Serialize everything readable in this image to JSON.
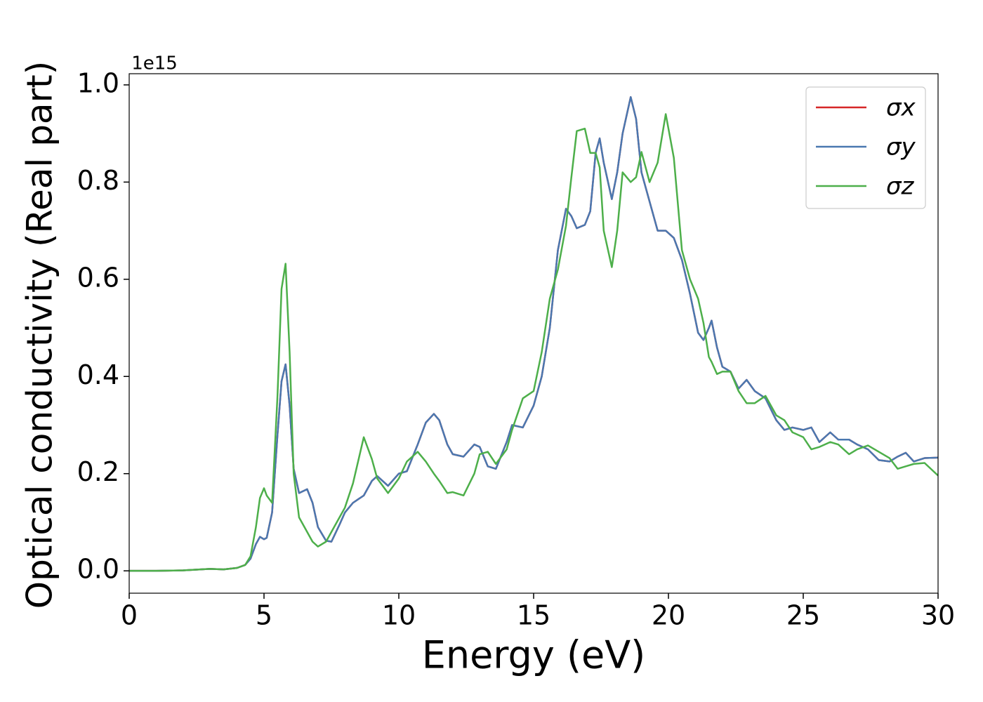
{
  "chart_data": {
    "type": "line",
    "xlabel": "Energy (eV)",
    "ylabel": "Optical conductivity (Real part)",
    "y_offset_label": "1e15",
    "x": [
      0,
      1,
      2,
      3,
      3.5,
      4,
      4.3,
      4.5,
      4.7,
      4.85,
      5.0,
      5.1,
      5.3,
      5.5,
      5.65,
      5.8,
      5.95,
      6.1,
      6.3,
      6.6,
      6.8,
      7.0,
      7.3,
      7.5,
      7.8,
      8.0,
      8.3,
      8.7,
      9.0,
      9.2,
      9.6,
      10.0,
      10.3,
      10.7,
      11.0,
      11.3,
      11.5,
      11.8,
      12.0,
      12.4,
      12.8,
      13.0,
      13.3,
      13.6,
      14.0,
      14.2,
      14.6,
      15.0,
      15.3,
      15.6,
      15.9,
      16.2,
      16.4,
      16.6,
      16.9,
      17.1,
      17.3,
      17.45,
      17.6,
      17.9,
      18.1,
      18.3,
      18.6,
      18.8,
      19.0,
      19.3,
      19.6,
      19.9,
      20.2,
      20.5,
      20.8,
      21.1,
      21.3,
      21.5,
      21.6,
      21.8,
      22.0,
      22.3,
      22.6,
      22.9,
      23.2,
      23.6,
      24.0,
      24.3,
      24.6,
      25.0,
      25.3,
      25.6,
      26.0,
      26.3,
      26.7,
      27.0,
      27.4,
      27.8,
      28.2,
      28.5,
      28.8,
      29.1,
      29.5,
      30
    ],
    "series": [
      {
        "name": "σx",
        "color": "#d62728",
        "values": [
          0,
          0,
          0.001,
          0.004,
          0.003,
          0.006,
          0.012,
          0.025,
          0.055,
          0.07,
          0.065,
          0.068,
          0.12,
          0.28,
          0.39,
          0.425,
          0.34,
          0.21,
          0.16,
          0.168,
          0.14,
          0.09,
          0.062,
          0.06,
          0.095,
          0.12,
          0.14,
          0.155,
          0.185,
          0.195,
          0.175,
          0.2,
          0.205,
          0.26,
          0.305,
          0.323,
          0.31,
          0.26,
          0.24,
          0.235,
          0.26,
          0.255,
          0.215,
          0.21,
          0.265,
          0.3,
          0.295,
          0.34,
          0.4,
          0.5,
          0.66,
          0.745,
          0.73,
          0.705,
          0.712,
          0.74,
          0.86,
          0.89,
          0.84,
          0.765,
          0.82,
          0.9,
          0.975,
          0.93,
          0.82,
          0.76,
          0.7,
          0.7,
          0.685,
          0.64,
          0.57,
          0.49,
          0.475,
          0.5,
          0.515,
          0.46,
          0.42,
          0.41,
          0.375,
          0.393,
          0.37,
          0.355,
          0.31,
          0.29,
          0.295,
          0.29,
          0.295,
          0.265,
          0.285,
          0.27,
          0.27,
          0.26,
          0.25,
          0.228,
          0.225,
          0.235,
          0.243,
          0.225,
          0.232,
          0.233
        ]
      },
      {
        "name": "σy",
        "color": "#4a78b0",
        "values": [
          0,
          0,
          0.001,
          0.004,
          0.003,
          0.006,
          0.012,
          0.025,
          0.055,
          0.07,
          0.065,
          0.068,
          0.12,
          0.28,
          0.39,
          0.425,
          0.34,
          0.21,
          0.16,
          0.168,
          0.14,
          0.09,
          0.062,
          0.06,
          0.095,
          0.12,
          0.14,
          0.155,
          0.185,
          0.195,
          0.175,
          0.2,
          0.205,
          0.26,
          0.305,
          0.323,
          0.31,
          0.26,
          0.24,
          0.235,
          0.26,
          0.255,
          0.215,
          0.21,
          0.265,
          0.3,
          0.295,
          0.34,
          0.4,
          0.5,
          0.66,
          0.745,
          0.73,
          0.705,
          0.712,
          0.74,
          0.86,
          0.89,
          0.84,
          0.765,
          0.82,
          0.9,
          0.975,
          0.93,
          0.82,
          0.76,
          0.7,
          0.7,
          0.685,
          0.64,
          0.57,
          0.49,
          0.475,
          0.5,
          0.515,
          0.46,
          0.42,
          0.41,
          0.375,
          0.393,
          0.37,
          0.355,
          0.31,
          0.29,
          0.295,
          0.29,
          0.295,
          0.265,
          0.285,
          0.27,
          0.27,
          0.26,
          0.25,
          0.228,
          0.225,
          0.235,
          0.243,
          0.225,
          0.232,
          0.233
        ]
      },
      {
        "name": "σz",
        "color": "#4daf4a",
        "values": [
          0,
          0,
          0.001,
          0.004,
          0.003,
          0.006,
          0.012,
          0.03,
          0.09,
          0.15,
          0.17,
          0.155,
          0.14,
          0.36,
          0.58,
          0.632,
          0.45,
          0.2,
          0.11,
          0.08,
          0.06,
          0.05,
          0.06,
          0.08,
          0.11,
          0.13,
          0.18,
          0.275,
          0.23,
          0.19,
          0.16,
          0.19,
          0.225,
          0.245,
          0.225,
          0.2,
          0.185,
          0.16,
          0.162,
          0.155,
          0.2,
          0.24,
          0.245,
          0.22,
          0.25,
          0.29,
          0.355,
          0.37,
          0.45,
          0.56,
          0.62,
          0.71,
          0.81,
          0.905,
          0.91,
          0.86,
          0.86,
          0.83,
          0.7,
          0.625,
          0.7,
          0.82,
          0.8,
          0.81,
          0.862,
          0.8,
          0.84,
          0.94,
          0.85,
          0.66,
          0.6,
          0.56,
          0.51,
          0.44,
          0.43,
          0.405,
          0.41,
          0.41,
          0.37,
          0.345,
          0.345,
          0.36,
          0.32,
          0.31,
          0.285,
          0.275,
          0.25,
          0.255,
          0.265,
          0.26,
          0.24,
          0.25,
          0.258,
          0.245,
          0.232,
          0.21,
          0.215,
          0.22,
          0.222,
          0.196
        ]
      }
    ],
    "xlim": [
      0,
      30
    ],
    "xticks": [
      0,
      5,
      10,
      15,
      20,
      25,
      30
    ],
    "ylim": [
      -0.046,
      1.023
    ],
    "yticks": [
      {
        "value": 0,
        "label": "0.0"
      },
      {
        "value": 0.2,
        "label": "0.2"
      },
      {
        "value": 0.4,
        "label": "0.4"
      },
      {
        "value": 0.6,
        "label": "0.6"
      },
      {
        "value": 0.8,
        "label": "0.8"
      },
      {
        "value": 1,
        "label": "1.0"
      }
    ],
    "legend": "upper right",
    "grid": false
  }
}
